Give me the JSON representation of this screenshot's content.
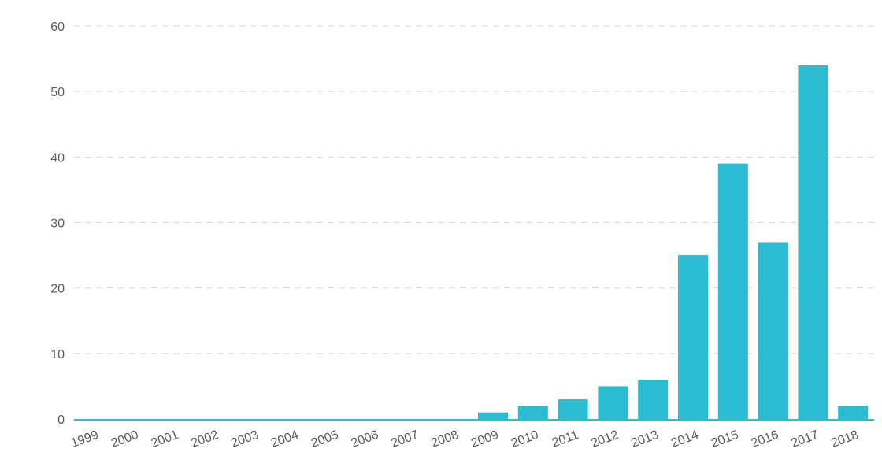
{
  "chart_data": {
    "type": "bar",
    "title": "",
    "xlabel": "",
    "ylabel": "",
    "categories": [
      "1999",
      "2000",
      "2001",
      "2002",
      "2003",
      "2004",
      "2005",
      "2006",
      "2007",
      "2008",
      "2009",
      "2010",
      "2011",
      "2012",
      "2013",
      "2014",
      "2015",
      "2016",
      "2017",
      "2018"
    ],
    "values": [
      0,
      0,
      0,
      0,
      0,
      0,
      0,
      0,
      0,
      0,
      1,
      2,
      3,
      5,
      6,
      25,
      39,
      27,
      54,
      2
    ],
    "ylim": [
      0,
      60
    ],
    "yticks": [
      "0",
      "10",
      "20",
      "30",
      "40",
      "50",
      "60"
    ],
    "grid": true,
    "legend": "none",
    "colors": {
      "bar": "#2bbcd1",
      "axis": "#2bbcd1",
      "grid": "#d9d9d9",
      "text": "#5a5a5a"
    }
  }
}
